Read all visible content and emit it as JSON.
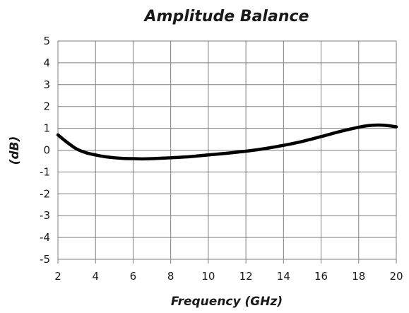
{
  "chart_data": {
    "type": "line",
    "title": "Amplitude Balance",
    "xlabel": "Frequency (GHz)",
    "ylabel": "(dB)",
    "xlim": [
      2,
      20
    ],
    "ylim": [
      -5,
      5
    ],
    "xticks": [
      "2",
      "4",
      "6",
      "8",
      "10",
      "12",
      "14",
      "16",
      "18",
      "20"
    ],
    "yticks": [
      "5",
      "4",
      "3",
      "2",
      "1",
      "0",
      "-1",
      "-2",
      "-3",
      "-4",
      "-5"
    ],
    "grid": true,
    "legend": "none",
    "line_color": "#000000",
    "series": [
      {
        "x": [
          2,
          2.5,
          3,
          3.5,
          4,
          4.5,
          5,
          5.5,
          6,
          6.5,
          7,
          7.5,
          8,
          9,
          10,
          11,
          12,
          13,
          14,
          15,
          16,
          17,
          18,
          18.5,
          19,
          19.5,
          20
        ],
        "y": [
          0.7,
          0.35,
          0.05,
          -0.12,
          -0.22,
          -0.3,
          -0.35,
          -0.38,
          -0.39,
          -0.4,
          -0.39,
          -0.37,
          -0.35,
          -0.3,
          -0.22,
          -0.14,
          -0.05,
          0.07,
          0.22,
          0.4,
          0.62,
          0.85,
          1.05,
          1.12,
          1.15,
          1.13,
          1.07
        ]
      }
    ]
  }
}
